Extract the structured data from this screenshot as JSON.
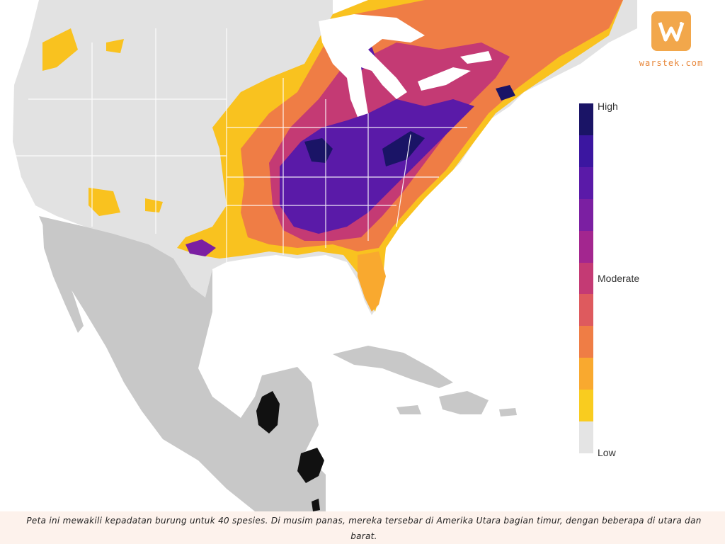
{
  "legend": {
    "high_label": "High",
    "moderate_label": "Moderate",
    "low_label": "Low",
    "colors": [
      "#1a1466",
      "#3b16a0",
      "#5a1aa8",
      "#7b1fa2",
      "#a3268f",
      "#c43a74",
      "#de5a5e",
      "#ef7d45",
      "#f9a92f",
      "#f9cc1f",
      "#e4e4e4"
    ]
  },
  "brand": {
    "logo_text": "warstek.com",
    "accent": "#f2a74b"
  },
  "caption": {
    "text": "Peta ini mewakili kepadatan burung untuk 40 spesies. Di musim panas, mereka tersebar di Amerika Utara bagian timur, dengan beberapa di utara dan barat."
  },
  "map_colors": {
    "land_us": "#e2e2e2",
    "land_mexico": "#c8c8c8",
    "water": "#ffffff",
    "borders": "#ffffff"
  }
}
